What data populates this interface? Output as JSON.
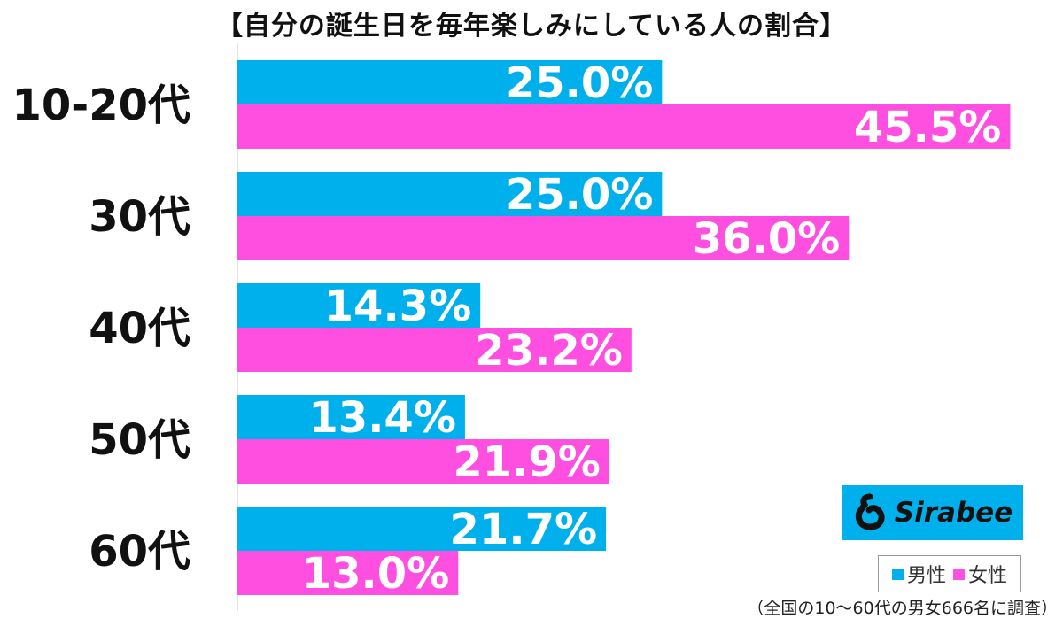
{
  "chart_data": {
    "type": "bar",
    "orientation": "horizontal",
    "title": "【自分の誕生日を毎年楽しみにしている人の割合】",
    "categories": [
      "10-20代",
      "30代",
      "40代",
      "50代",
      "60代"
    ],
    "series": [
      {
        "name": "男性",
        "color": "#00b0ec",
        "values": [
          25.0,
          25.0,
          14.3,
          13.4,
          21.7
        ],
        "labels": [
          "25.0%",
          "25.0%",
          "14.3%",
          "13.4%",
          "21.7%"
        ]
      },
      {
        "name": "女性",
        "color": "#ff4fe0",
        "values": [
          45.5,
          36.0,
          23.2,
          21.9,
          13.0
        ],
        "labels": [
          "45.5%",
          "36.0%",
          "23.2%",
          "21.9%",
          "13.0%"
        ]
      }
    ],
    "xlim": [
      0,
      46
    ],
    "legend_position": "bottom-right",
    "grid": false,
    "footnote": "（全国の10〜60代の男女666名に調査）"
  },
  "logo": {
    "text": "Sirabee",
    "icon": "sirabee-logo-icon"
  }
}
